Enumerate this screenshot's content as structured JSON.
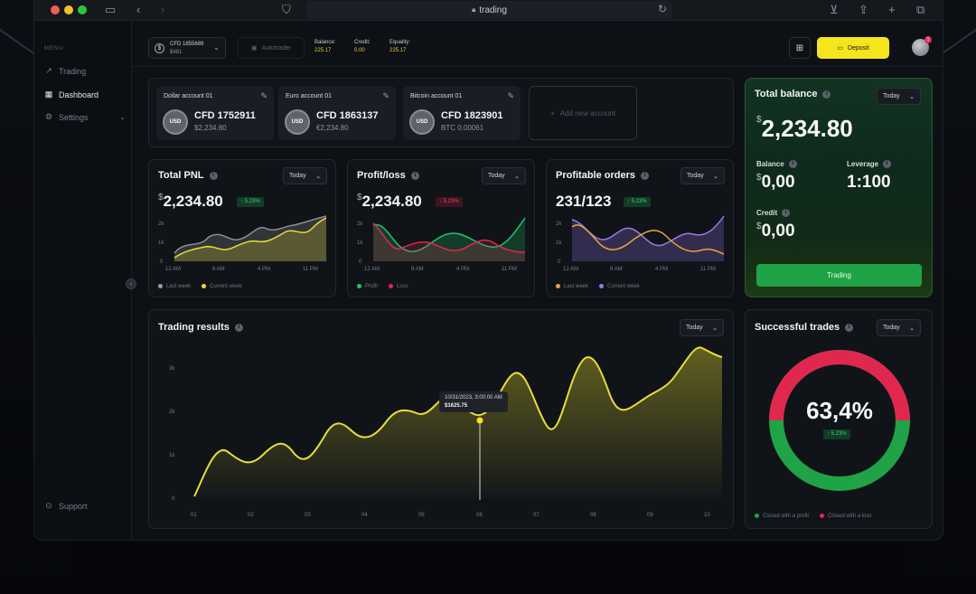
{
  "browser": {
    "url": "trading",
    "lock_icon": "lock-icon"
  },
  "sidebar": {
    "menu_label": "MENU",
    "items": [
      {
        "label": "Trading",
        "icon": "chart-line-icon"
      },
      {
        "label": "Dashboard",
        "icon": "grid-icon"
      },
      {
        "label": "Settings",
        "icon": "gear-icon"
      }
    ],
    "support_label": "Support"
  },
  "topbar": {
    "account_number": "CFD 1855689",
    "account_balance": "$481",
    "autotrader_label": "Autotrader",
    "balance_label": "Balance:",
    "balance_value": "225.17",
    "credit_label": "Credit:",
    "credit_value": "0.00",
    "equality_label": "Equality:",
    "equality_value": "225.17",
    "deposit_label": "Deposit",
    "avatar_badge": "1"
  },
  "accounts": [
    {
      "name": "Dollar account 01",
      "currency": "USD",
      "number": "CFD 1752911",
      "balance": "$2,234.80"
    },
    {
      "name": "Euro account 01",
      "currency": "USD",
      "number": "CFD 1863137",
      "balance": "€2,234.80"
    },
    {
      "name": "Bitcoin account 01",
      "currency": "USD",
      "number": "CFD 1823901",
      "balance": "BTC 0.00061"
    }
  ],
  "add_account_label": "Add new account",
  "total_pnl": {
    "title": "Total PNL",
    "period": "Today",
    "currency": "$",
    "value": "2,234.80",
    "change": "↑ 5.23%",
    "legend": [
      "Last week",
      "Current week"
    ],
    "x_ticks": [
      "12 AM",
      "8 AM",
      "4 PM",
      "11 PM"
    ],
    "y_ticks": [
      "2k",
      "1k",
      "0"
    ]
  },
  "profit_loss": {
    "title": "Profit/loss",
    "period": "Today",
    "currency": "$",
    "value": "2,234.80",
    "change": "↓ 5.23%",
    "legend": [
      "Profit",
      "Loss"
    ],
    "x_ticks": [
      "12 AM",
      "8 AM",
      "4 PM",
      "11 PM"
    ],
    "y_ticks": [
      "2k",
      "1k",
      "0"
    ]
  },
  "profitable_orders": {
    "title": "Profitable orders",
    "period": "Today",
    "value": "231/123",
    "change": "↑ 5.23%",
    "legend": [
      "Last week",
      "Current week"
    ],
    "x_ticks": [
      "12 AM",
      "8 AM",
      "4 PM",
      "11 PM"
    ],
    "y_ticks": [
      "2k",
      "1k",
      "0"
    ]
  },
  "total_balance": {
    "title": "Total balance",
    "period": "Today",
    "currency": "$",
    "value": "2,234.80",
    "balance_label": "Balance",
    "balance_value": "0,00",
    "leverage_label": "Leverage",
    "leverage_value": "1:100",
    "credit_label": "Credit",
    "credit_value": "0,00",
    "trading_button": "Trading"
  },
  "trading_results": {
    "title": "Trading results",
    "period": "Today",
    "tooltip_date": "10/31/2023, 3:00:00 AM",
    "tooltip_value": "$1625.75",
    "x_ticks": [
      "01",
      "02",
      "03",
      "04",
      "05",
      "06",
      "07",
      "08",
      "09",
      "10"
    ],
    "y_ticks": [
      "3k",
      "2k",
      "1k",
      "0"
    ]
  },
  "successful_trades": {
    "title": "Successful trades",
    "period": "Today",
    "value": "63,4%",
    "change": "↑ 5.23%",
    "legend": [
      "Closed with a profit",
      "Closed with a loss"
    ],
    "colors": {
      "profit": "#1fa346",
      "loss": "#e0284f"
    }
  },
  "colors": {
    "accent_yellow": "#f5e51c",
    "green": "#1fa346",
    "red": "#e0284f"
  }
}
